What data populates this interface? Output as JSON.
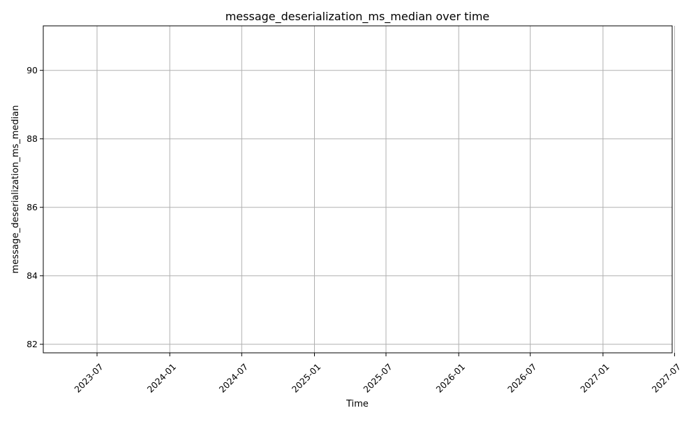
{
  "chart_data": {
    "type": "line",
    "title": "message_deserialization_ms_median over time",
    "xlabel": "Time",
    "ylabel": "message_deserialization_ms_median",
    "x_axis": {
      "scale": "time",
      "range": [
        "2023-02-15",
        "2027-06-25"
      ],
      "ticks": [
        {
          "value": "2023-07-01",
          "label": "2023-07"
        },
        {
          "value": "2024-01-01",
          "label": "2024-01"
        },
        {
          "value": "2024-07-01",
          "label": "2024-07"
        },
        {
          "value": "2025-01-01",
          "label": "2025-01"
        },
        {
          "value": "2025-07-01",
          "label": "2025-07"
        },
        {
          "value": "2026-01-01",
          "label": "2026-01"
        },
        {
          "value": "2026-07-01",
          "label": "2026-07"
        },
        {
          "value": "2027-01-01",
          "label": "2027-01"
        },
        {
          "value": "2027-07-01",
          "label": "2027-07"
        }
      ]
    },
    "y_axis": {
      "range": [
        81.75,
        91.3
      ],
      "ticks": [
        82,
        84,
        86,
        88,
        90
      ]
    },
    "grid": true,
    "series": [
      {
        "values": []
      }
    ]
  }
}
